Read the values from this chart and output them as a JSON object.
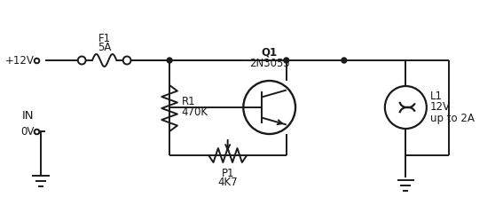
{
  "bg_color": "#ffffff",
  "line_color": "#1a1a1a",
  "text_color": "#1a1a1a",
  "fig_width": 5.67,
  "fig_height": 2.31,
  "labels": {
    "fuse_name": "F1",
    "fuse_value": "5A",
    "transistor_name": "Q1",
    "transistor_value": "2N3055",
    "resistor_name": "R1",
    "resistor_value": "470K",
    "pot_name": "P1",
    "pot_value": "4K7",
    "lamp_name": "L1",
    "lamp_value": "12V",
    "lamp_value2": "up to 2A",
    "vplus": "+12V",
    "vzero": "0V",
    "vin": "IN"
  }
}
